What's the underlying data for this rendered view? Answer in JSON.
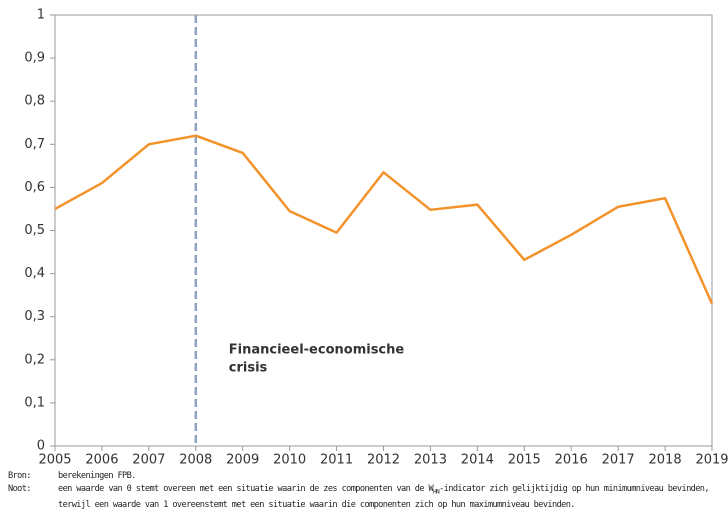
{
  "chart_data": {
    "type": "line",
    "x": [
      2005,
      2006,
      2007,
      2008,
      2009,
      2010,
      2011,
      2012,
      2013,
      2014,
      2015,
      2016,
      2017,
      2018,
      2019
    ],
    "values": [
      0.55,
      0.61,
      0.7,
      0.72,
      0.68,
      0.545,
      0.495,
      0.635,
      0.548,
      0.56,
      0.432,
      0.49,
      0.555,
      0.575,
      0.33
    ],
    "color": "#f39229",
    "xlim": [
      2005,
      2019
    ],
    "xticks": [
      2005,
      2006,
      2007,
      2008,
      2009,
      2010,
      2011,
      2012,
      2013,
      2014,
      2015,
      2016,
      2017,
      2018,
      2019
    ],
    "ylim": [
      0,
      1
    ],
    "yticks": [
      0,
      {
        "value": 0.1,
        "label": "0,1"
      },
      {
        "value": 0.2,
        "label": "0,2"
      },
      {
        "value": 0.3,
        "label": "0,3"
      },
      {
        "value": 0.4,
        "label": "0,4"
      },
      {
        "value": 0.5,
        "label": "0,5"
      },
      {
        "value": 0.6,
        "label": "0,6"
      },
      {
        "value": 0.7,
        "label": "0,7"
      },
      {
        "value": 0.8,
        "label": "0,8"
      },
      {
        "value": 0.9,
        "label": "0,9"
      },
      1
    ],
    "grid": false,
    "vline": 2008,
    "annotation": [
      "Financieel-economische",
      "crisis"
    ],
    "notes": {
      "source_label": "Bron:",
      "source": "berekeningen FPB.",
      "note_label": "Noot:",
      "note_line1_a": "een waarde van 0 stemt overeen met een situatie waarin de zes componenten van de W",
      "note_line1_sub": "HN",
      "note_line1_b": "-indicator zich gelijktijdig op hun minimumniveau bevinden,",
      "note_line2": "terwijl een waarde van 1 overeenstemt met een situatie waarin die componenten zich op hun maximumniveau bevinden."
    }
  }
}
